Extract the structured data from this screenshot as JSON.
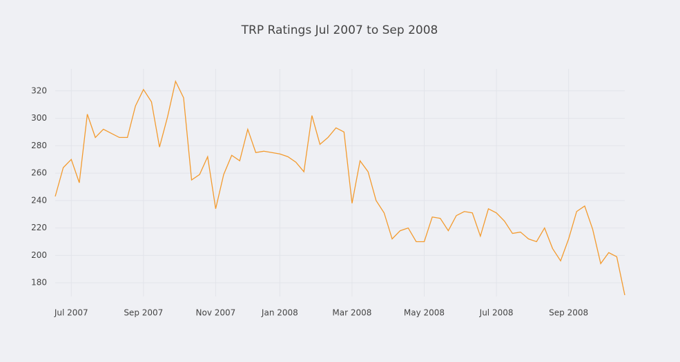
{
  "chart_data": {
    "type": "line",
    "title": "TRP Ratings Jul 2007 to Sep 2008",
    "categories": [
      null,
      null,
      "Jul 2007",
      null,
      null,
      null,
      null,
      null,
      null,
      null,
      null,
      "Sep 2007",
      null,
      null,
      null,
      null,
      null,
      null,
      null,
      null,
      "Nov 2007",
      null,
      null,
      null,
      null,
      null,
      null,
      null,
      "Jan 2008",
      null,
      null,
      null,
      null,
      null,
      null,
      null,
      null,
      "Mar 2008",
      null,
      null,
      null,
      null,
      null,
      null,
      null,
      null,
      "May 2008",
      null,
      null,
      null,
      null,
      null,
      null,
      null,
      null,
      "Jul 2008",
      null,
      null,
      null,
      null,
      null,
      null,
      null,
      null,
      "Sep 2008",
      null,
      null,
      null,
      null,
      null,
      null,
      null
    ],
    "values": [
      243,
      264,
      270,
      253,
      303,
      286,
      292,
      289,
      286,
      286,
      309,
      321,
      312,
      279,
      301,
      327,
      315,
      255,
      259,
      272,
      234,
      259,
      273,
      269,
      292,
      275,
      276,
      275,
      274,
      272,
      268,
      261,
      302,
      281,
      286,
      293,
      290,
      238,
      269,
      261,
      240,
      231,
      212,
      218,
      220,
      210,
      210,
      228,
      227,
      218,
      229,
      232,
      231,
      214,
      234,
      231,
      225,
      216,
      217,
      212,
      210,
      220,
      205,
      196,
      212,
      232,
      236,
      219,
      194,
      202,
      199,
      171
    ],
    "color": "#f39a2d",
    "ylim": [
      170,
      336
    ],
    "yticks": [
      180,
      200,
      220,
      240,
      260,
      280,
      300,
      320
    ],
    "grid": true
  }
}
